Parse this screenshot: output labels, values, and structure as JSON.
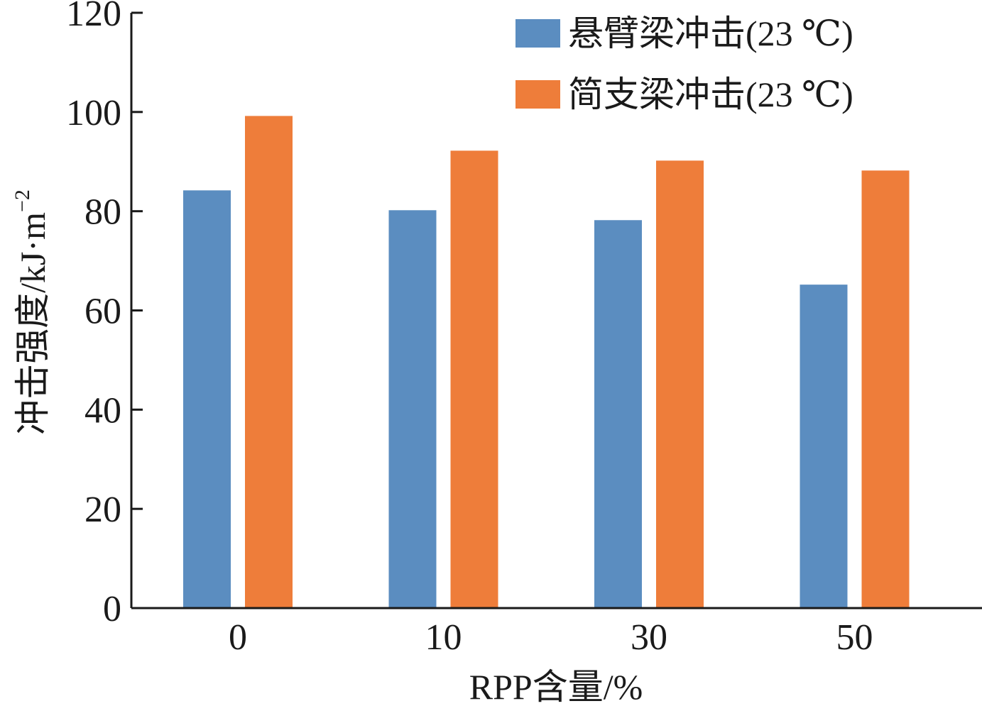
{
  "chart_data": {
    "type": "bar",
    "categories": [
      "0",
      "10",
      "30",
      "50"
    ],
    "series": [
      {
        "name": "悬臂梁冲击(23 ℃)",
        "values": [
          84.2,
          80.2,
          78.2,
          65.2
        ],
        "color": "#5b8dc0"
      },
      {
        "name": "简支梁冲击(23 ℃)",
        "values": [
          99.2,
          92.2,
          90.2,
          88.2
        ],
        "color": "#ee7d3a"
      }
    ],
    "xlabel": "RPP含量/%",
    "ylabel": "冲击强度/kJ·m",
    "ylabel_superscript": "−2",
    "ylim": [
      0,
      120
    ],
    "yticks": [
      0,
      20,
      40,
      60,
      80,
      100,
      120
    ],
    "legend_position": "top-right",
    "grid": false
  }
}
